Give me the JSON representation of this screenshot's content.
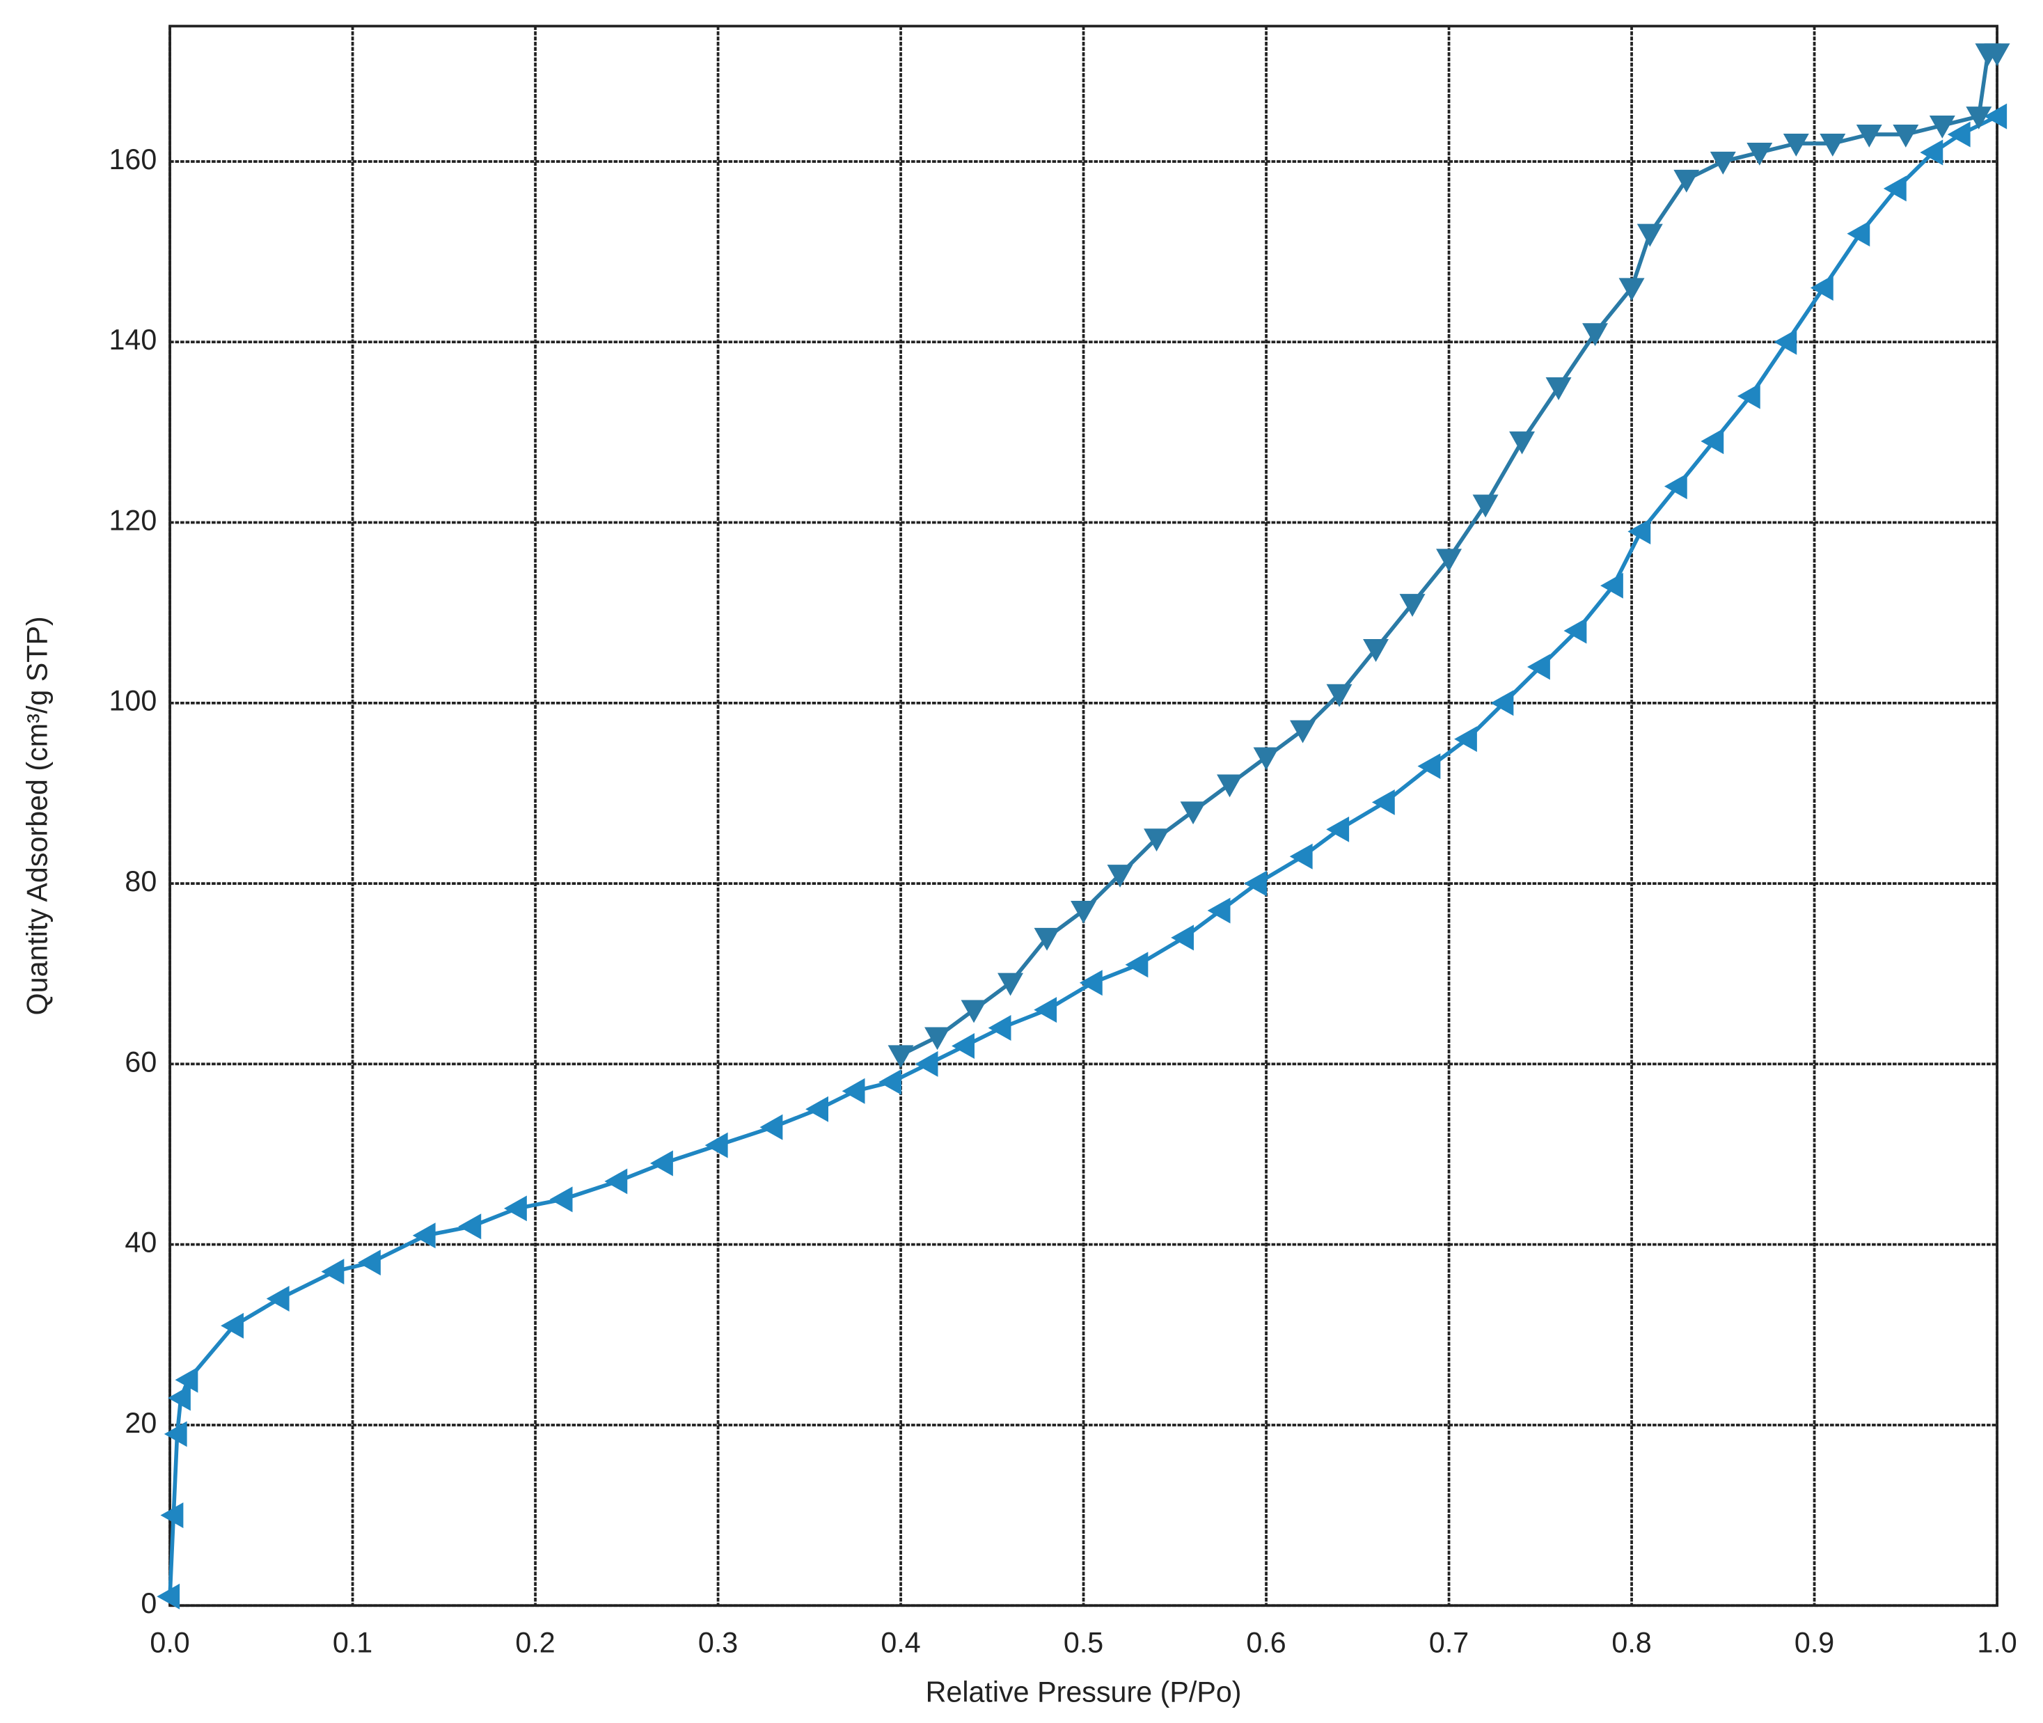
{
  "chart_data": {
    "type": "line",
    "x_label": "Relative Pressure (P/Po)",
    "y_label": "Quantity Adsorbed (cm³/g STP)",
    "xlim": [
      0,
      1
    ],
    "ylim": [
      0,
      175
    ],
    "xticks": [
      {
        "value": 0,
        "label": "0.0"
      },
      0.1,
      0.2,
      0.3,
      0.4,
      0.5,
      0.6,
      0.7,
      0.8,
      0.9,
      {
        "value": 1,
        "label": "1.0"
      }
    ],
    "yticks": [
      0,
      20,
      40,
      60,
      80,
      100,
      120,
      140,
      160
    ],
    "grid": true,
    "series": [
      {
        "color": "#1f86c2",
        "marker": "left",
        "x": [
          0.0,
          0.002,
          0.004,
          0.006,
          0.01,
          0.035,
          0.06,
          0.09,
          0.11,
          0.14,
          0.165,
          0.19,
          0.215,
          0.245,
          0.27,
          0.3,
          0.33,
          0.355,
          0.375,
          0.395,
          0.415,
          0.435,
          0.455,
          0.48,
          0.505,
          0.53,
          0.555,
          0.575,
          0.595,
          0.62,
          0.64,
          0.665,
          0.69,
          0.71,
          0.73,
          0.75,
          0.77,
          0.79,
          0.805,
          0.825,
          0.845,
          0.865,
          0.885,
          0.905,
          0.925,
          0.945,
          0.965,
          0.98,
          1.0
        ],
        "values": [
          1,
          10,
          19,
          23,
          25,
          31,
          34,
          37,
          38,
          41,
          42,
          44,
          45,
          47,
          49,
          51,
          53,
          55,
          57,
          58,
          60,
          62,
          64,
          66,
          69,
          71,
          74,
          77,
          80,
          83,
          86,
          89,
          93,
          96,
          100,
          104,
          108,
          113,
          119,
          124,
          129,
          134,
          140,
          146,
          152,
          157,
          161,
          163,
          165
        ]
      },
      {
        "color": "#2a7aa6",
        "marker": "down",
        "x": [
          1.0,
          0.995,
          0.99,
          0.97,
          0.95,
          0.93,
          0.91,
          0.89,
          0.87,
          0.85,
          0.83,
          0.81,
          0.8,
          0.78,
          0.76,
          0.74,
          0.72,
          0.7,
          0.68,
          0.66,
          0.64,
          0.62,
          0.6,
          0.58,
          0.56,
          0.54,
          0.52,
          0.5,
          0.48,
          0.46,
          0.44,
          0.42,
          0.4
        ],
        "values": [
          172,
          172,
          165,
          164,
          163,
          163,
          162,
          162,
          161,
          160,
          158,
          152,
          146,
          141,
          135,
          129,
          122,
          116,
          111,
          106,
          101,
          97,
          94,
          91,
          88,
          85,
          81,
          77,
          74,
          69,
          66,
          63,
          61
        ]
      }
    ]
  }
}
